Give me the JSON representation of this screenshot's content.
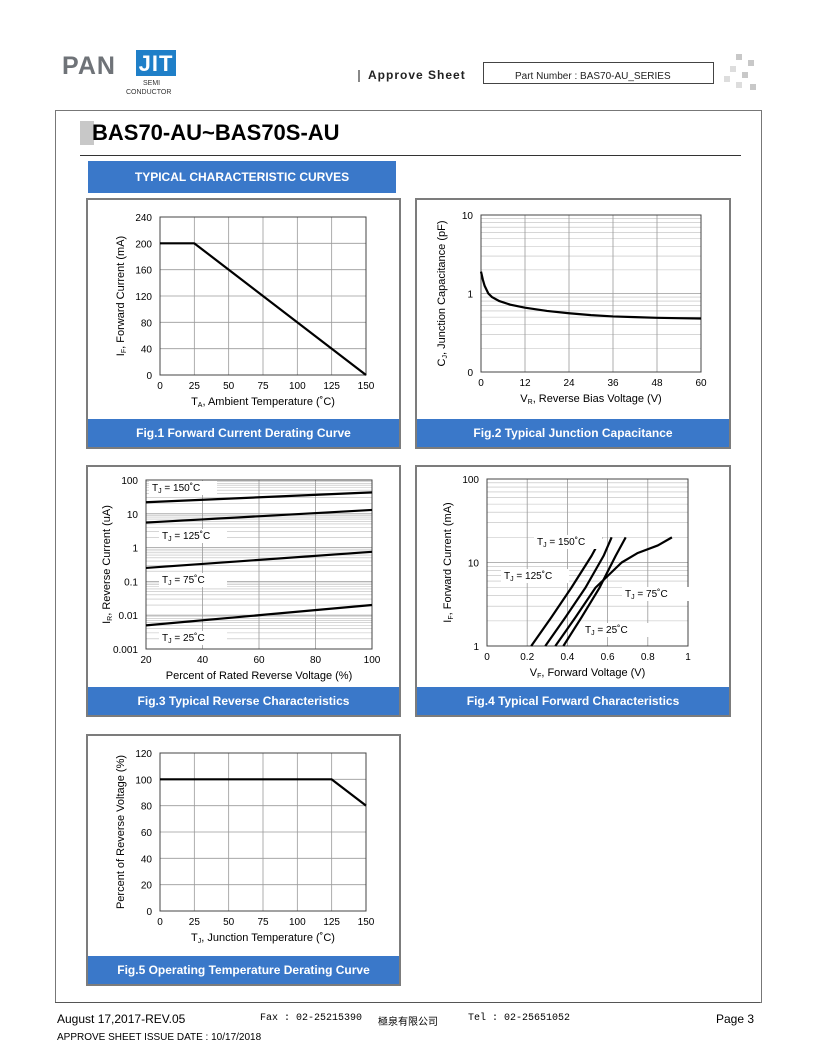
{
  "header": {
    "logo_pan": "PAN",
    "logo_jit": "JIT",
    "logo_semi": "SEMI",
    "logo_conductor": "CONDUCTOR",
    "approve_sheet": "Approve Sheet",
    "part_number": "Part Number : BAS70-AU_SERIES"
  },
  "title": "BAS70-AU~BAS70S-AU",
  "section_title": "TYPICAL CHARACTERISTIC CURVES",
  "chart_data": [
    {
      "type": "line",
      "caption": "Fig.1 Forward Current Derating Curve",
      "ylabel": "IF, Forward Current (mA)",
      "xlabel": "TA, Ambient Temperature (˚C)",
      "xlim": [
        0,
        150
      ],
      "ylim": [
        0,
        240
      ],
      "xticks": [
        "0",
        "25",
        "50",
        "75",
        "100",
        "125",
        "150"
      ],
      "yticks": [
        "0",
        "40",
        "80",
        "120",
        "160",
        "200",
        "240"
      ],
      "series": [
        {
          "x": [
            0,
            25,
            150
          ],
          "y": [
            200,
            200,
            0
          ]
        }
      ]
    },
    {
      "type": "line",
      "caption": "Fig.2 Typical Junction Capacitance",
      "ylabel": "CJ, Junction Capacitance (pF)",
      "xlabel": "VR, Reverse Bias Voltage (V)",
      "xlim": [
        0,
        60
      ],
      "yscale": "log",
      "xticks": [
        "0",
        "12",
        "24",
        "36",
        "48",
        "60"
      ],
      "yticks": [
        "0",
        "1",
        "10"
      ],
      "series": [
        {
          "x": [
            0,
            0.5,
            1,
            2,
            3,
            5,
            8,
            12,
            18,
            24,
            30,
            36,
            42,
            48,
            54,
            60
          ],
          "y": [
            1.9,
            1.5,
            1.25,
            1.0,
            0.9,
            0.8,
            0.72,
            0.66,
            0.6,
            0.56,
            0.53,
            0.51,
            0.5,
            0.49,
            0.485,
            0.48
          ]
        }
      ]
    },
    {
      "type": "line",
      "caption": "Fig.3 Typical Reverse Characteristics",
      "ylabel": "IR, Reverse Current (uA)",
      "xlabel": "Percent of Rated Reverse Voltage (%)",
      "xlim": [
        20,
        100
      ],
      "yscale": "log",
      "xticks": [
        "20",
        "40",
        "60",
        "80",
        "100"
      ],
      "yticks": [
        "0.001",
        "0.01",
        "0.1",
        "1",
        "10",
        "100"
      ],
      "annotations": [
        "TJ = 150˚C",
        "TJ = 125˚C",
        "TJ = 75˚C",
        "TJ = 25˚C"
      ],
      "series": [
        {
          "x": [
            20,
            100
          ],
          "y": [
            22,
            43
          ]
        },
        {
          "x": [
            20,
            100
          ],
          "y": [
            5.5,
            13
          ]
        },
        {
          "x": [
            20,
            100
          ],
          "y": [
            0.25,
            0.75
          ]
        },
        {
          "x": [
            20,
            100
          ],
          "y": [
            0.005,
            0.02
          ]
        }
      ]
    },
    {
      "type": "line",
      "caption": "Fig.4 Typical Forward Characteristics",
      "ylabel": "IF, Forward Current (mA)",
      "xlabel": "VF, Forward Voltage (V)",
      "xlim": [
        0,
        1
      ],
      "yscale": "log",
      "xticks": [
        "0",
        "0.2",
        "0.4",
        "0.6",
        "0.8",
        "1"
      ],
      "yticks": [
        "1",
        "10",
        "100"
      ],
      "annotations": [
        "TJ = 150˚C",
        "TJ = 125˚C",
        "TJ = 75˚C",
        "TJ = 25˚C"
      ],
      "series": [
        {
          "x": [
            0.22,
            0.32,
            0.42,
            0.52,
            0.57
          ],
          "y": [
            1,
            2.2,
            5,
            12,
            20
          ]
        },
        {
          "x": [
            0.29,
            0.39,
            0.49,
            0.58,
            0.62
          ],
          "y": [
            1,
            2.2,
            5,
            12,
            20
          ]
        },
        {
          "x": [
            0.34,
            0.44,
            0.54,
            0.67,
            0.75,
            0.85,
            0.92
          ],
          "y": [
            1,
            2.2,
            5,
            10,
            13,
            16,
            20
          ]
        },
        {
          "x": [
            0.38,
            0.47,
            0.56,
            0.64,
            0.69
          ],
          "y": [
            1,
            2.2,
            5,
            12,
            20
          ]
        }
      ]
    },
    {
      "type": "line",
      "caption": "Fig.5 Operating Temperature Derating Curve",
      "ylabel": "Percent of Reverse Voltage (%)",
      "xlabel": "TJ, Junction Temperature (˚C)",
      "xlim": [
        0,
        150
      ],
      "ylim": [
        0,
        120
      ],
      "xticks": [
        "0",
        "25",
        "50",
        "75",
        "100",
        "125",
        "150"
      ],
      "yticks": [
        "0",
        "20",
        "40",
        "60",
        "80",
        "100",
        "120"
      ],
      "series": [
        {
          "x": [
            0,
            125,
            150
          ],
          "y": [
            100,
            100,
            80
          ]
        }
      ]
    }
  ],
  "footer": {
    "date_rev": "August 17,2017-REV.05",
    "fax": "Fax : 02-25215390",
    "company": "極泉有限公司",
    "tel": "Tel : 02-25651052",
    "page": "Page 3",
    "issue": "APPROVE SHEET ISSUE DATE : 10/17/2018"
  }
}
